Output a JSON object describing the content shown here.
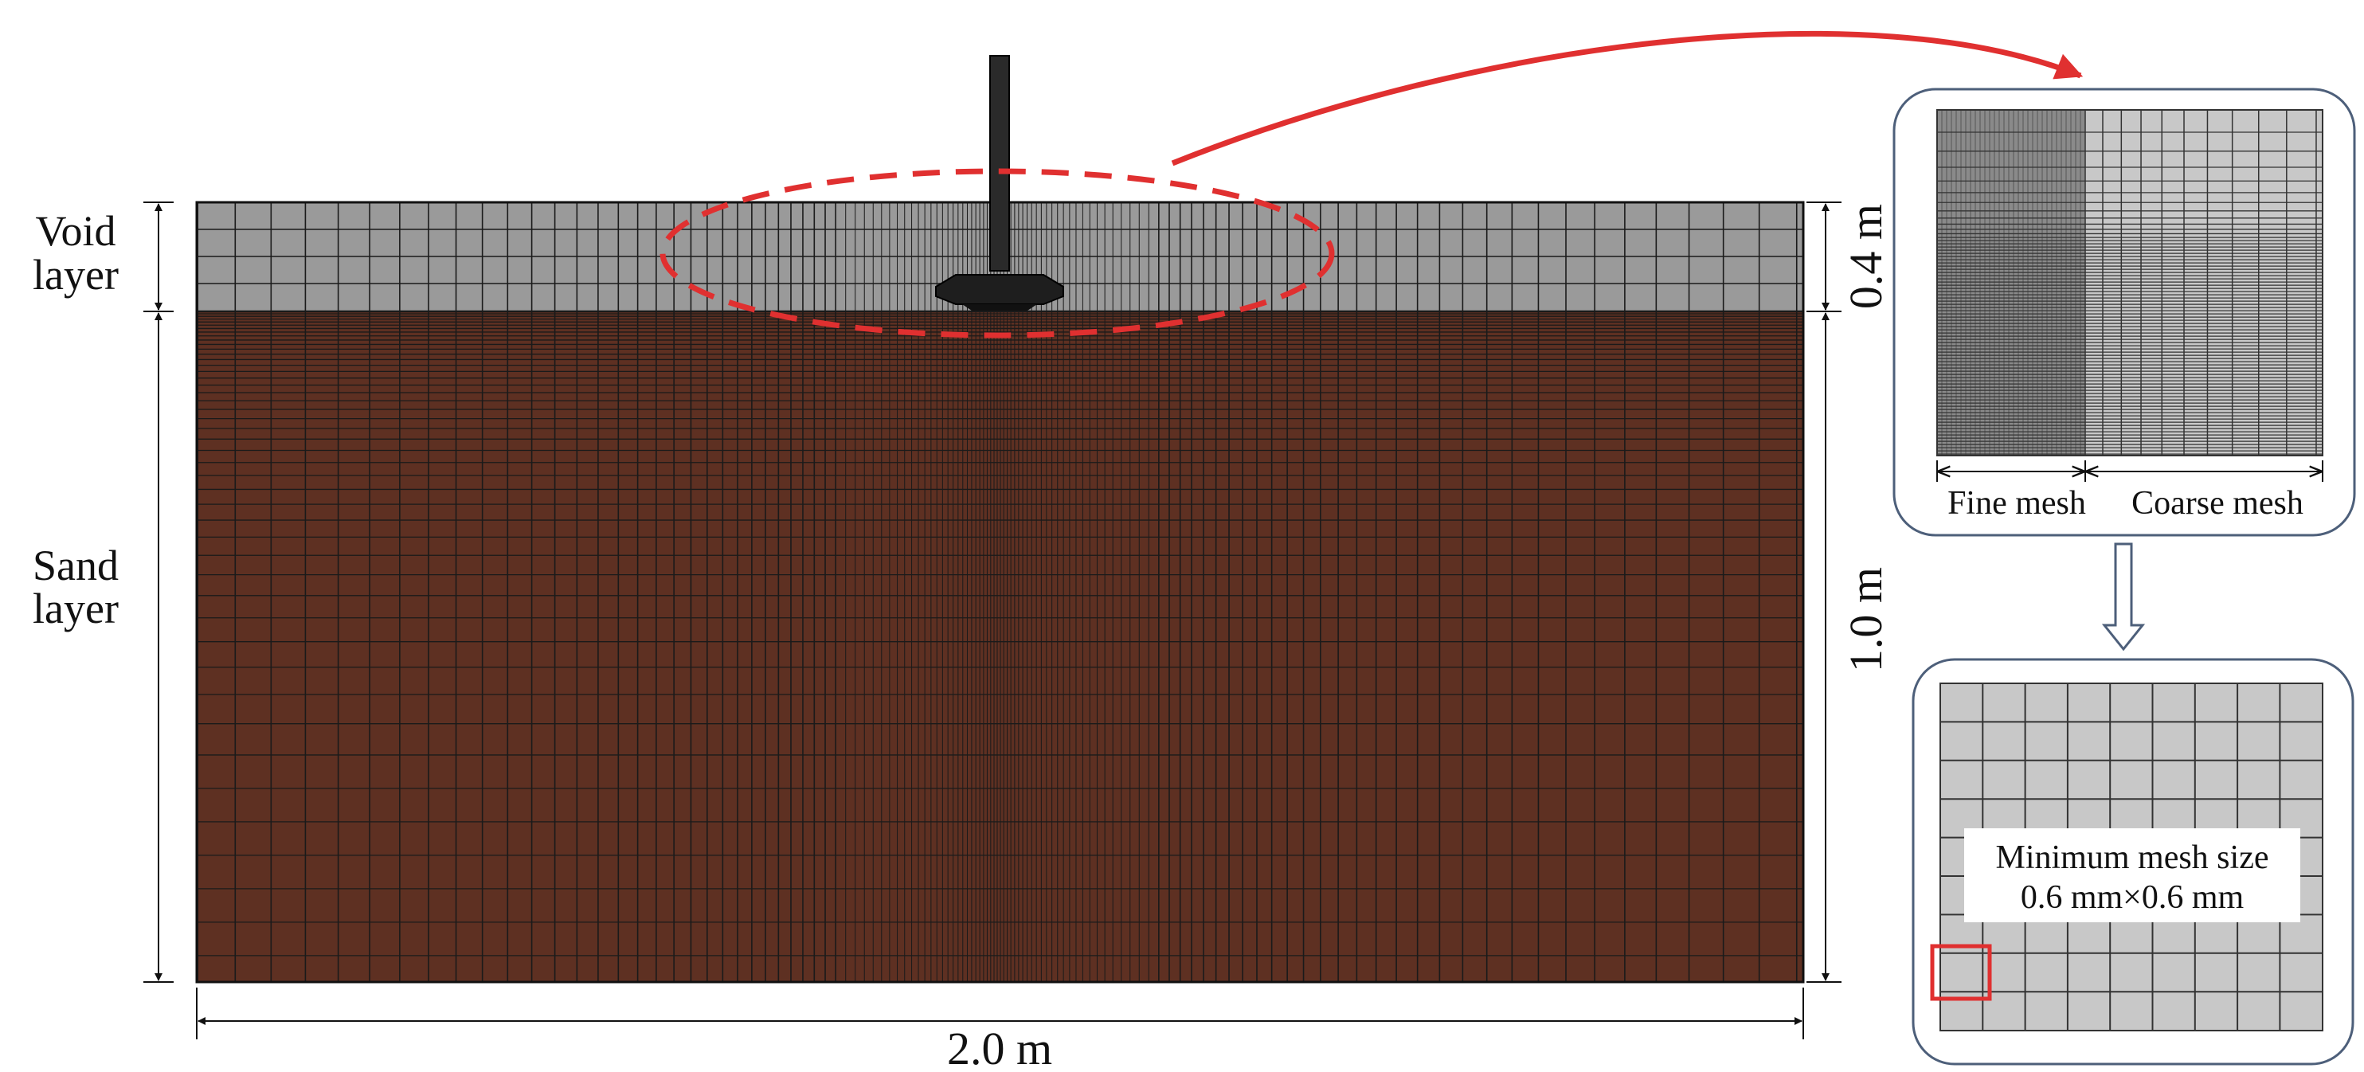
{
  "labels": {
    "void_layer_line1": "Void",
    "void_layer_line2": "layer",
    "sand_layer_line1": "Sand",
    "sand_layer_line2": "layer",
    "void_thickness": "0.4 m",
    "sand_thickness": "1.0 m",
    "model_width": "2.0 m"
  },
  "inset_top": {
    "fine_mesh_label": "Fine mesh",
    "coarse_mesh_label": "Coarse mesh"
  },
  "inset_bottom": {
    "min_mesh_line1": "Minimum mesh size",
    "min_mesh_line2": "0.6 mm×0.6 mm"
  },
  "colors": {
    "void_layer": "#9a9a9a",
    "sand_layer": "#5e3022",
    "mesh_line": "#1a1a1a",
    "highlight": "#e03030",
    "inset_border": "#4d5f7a",
    "inset_fill": "#c8c8c8",
    "fine_region": "#8a8a8a"
  }
}
